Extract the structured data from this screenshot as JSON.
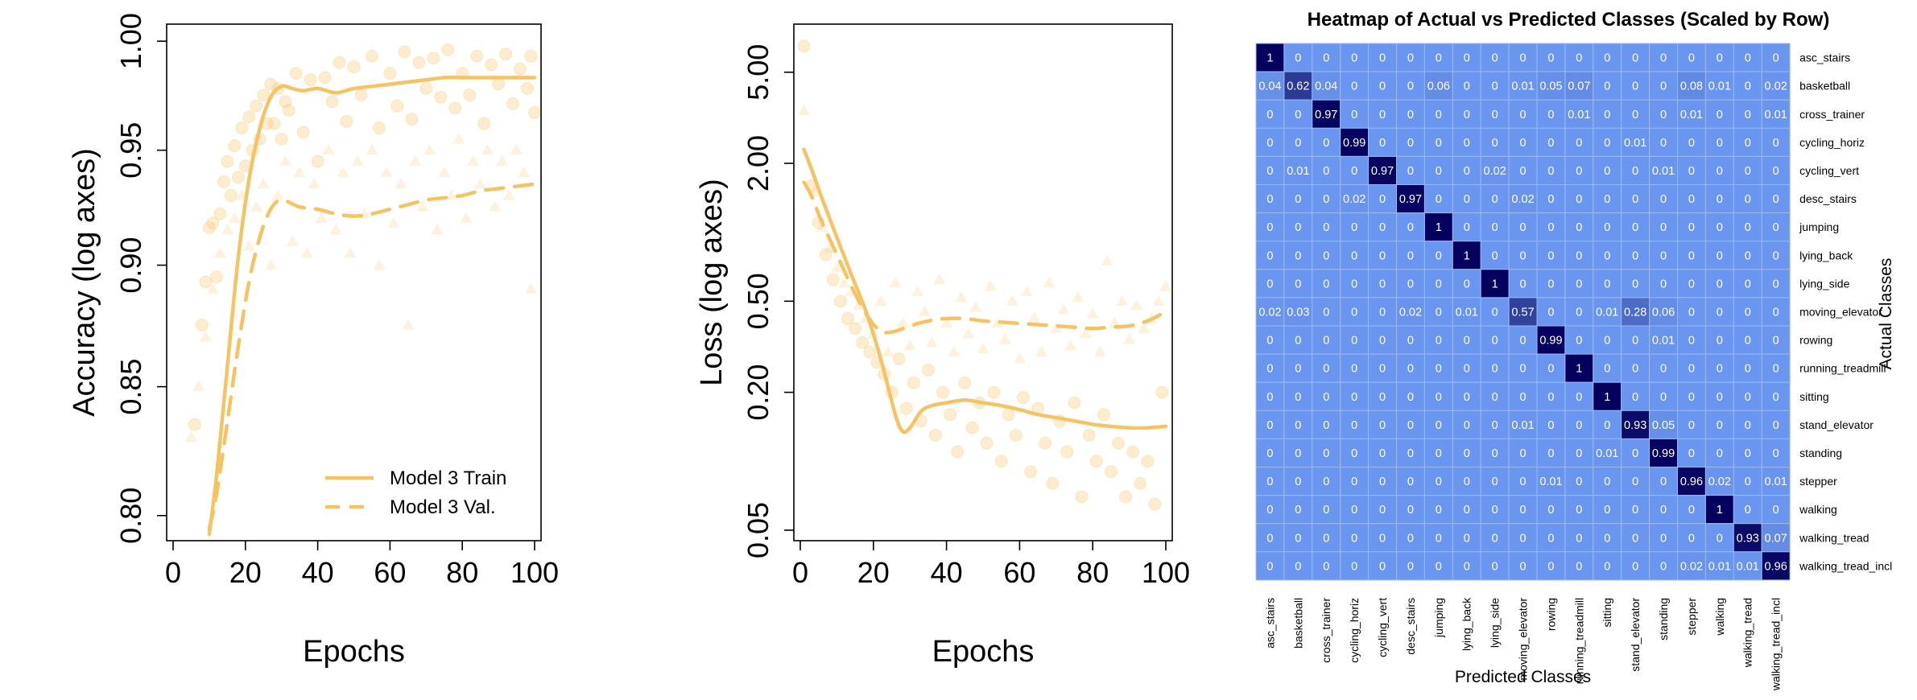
{
  "chart_data": [
    {
      "type": "scatter",
      "id": "accuracy",
      "xlabel": "Epochs",
      "ylabel": "Accuracy (log axes)",
      "xlim": [
        0,
        100
      ],
      "ylim": [
        0.793,
        1.005
      ],
      "y_log": true,
      "x_ticks": [
        0,
        20,
        40,
        60,
        80,
        100
      ],
      "x_tick_labels": [
        "0",
        "20",
        "40",
        "60",
        "80",
        "100"
      ],
      "y_ticks": [
        0.8,
        0.85,
        0.9,
        0.95,
        1.0
      ],
      "y_tick_labels": [
        "0.80",
        "0.85",
        "0.90",
        "0.95",
        "1.00"
      ],
      "color": "#f5c363",
      "legend": {
        "position": "bottom-right",
        "entries": [
          {
            "label": "Model 3 Train",
            "style": "solid"
          },
          {
            "label": "Model 3 Val.",
            "style": "dashed"
          }
        ]
      },
      "series": [
        {
          "name": "Model 3 Train",
          "kind": "smooth",
          "style": "solid",
          "x": [
            10,
            12,
            15,
            18,
            21,
            24,
            27,
            30,
            33,
            36,
            40,
            45,
            50,
            55,
            60,
            65,
            70,
            75,
            80,
            85,
            90,
            95,
            100
          ],
          "y": [
            0.793,
            0.815,
            0.858,
            0.903,
            0.937,
            0.96,
            0.974,
            0.979,
            0.978,
            0.977,
            0.978,
            0.976,
            0.978,
            0.979,
            0.98,
            0.981,
            0.982,
            0.983,
            0.983,
            0.983,
            0.983,
            0.983,
            0.983
          ]
        },
        {
          "name": "Model 3 Val.",
          "kind": "smooth",
          "style": "dashed",
          "x": [
            10,
            12,
            15,
            18,
            21,
            24,
            27,
            30,
            35,
            40,
            45,
            50,
            55,
            60,
            65,
            70,
            75,
            80,
            85,
            90,
            95,
            100
          ],
          "y": [
            0.795,
            0.808,
            0.836,
            0.866,
            0.893,
            0.912,
            0.924,
            0.928,
            0.925,
            0.924,
            0.922,
            0.921,
            0.922,
            0.924,
            0.926,
            0.928,
            0.929,
            0.93,
            0.932,
            0.933,
            0.934,
            0.935
          ]
        },
        {
          "name": "Model 3 Train (epochs)",
          "kind": "points",
          "marker": "circle",
          "x": [
            6,
            8,
            9,
            10,
            11,
            12,
            13,
            14,
            15,
            16,
            17,
            18,
            19,
            20,
            21,
            22,
            23,
            24,
            25,
            26,
            27,
            28,
            29,
            30,
            31,
            32,
            34,
            36,
            38,
            40,
            42,
            44,
            46,
            48,
            50,
            52,
            55,
            57,
            60,
            62,
            64,
            66,
            68,
            70,
            72,
            74,
            76,
            78,
            80,
            82,
            84,
            86,
            88,
            90,
            92,
            94,
            96,
            98,
            99,
            100
          ],
          "y": [
            0.835,
            0.875,
            0.893,
            0.916,
            0.918,
            0.895,
            0.922,
            0.936,
            0.945,
            0.93,
            0.952,
            0.938,
            0.96,
            0.943,
            0.965,
            0.95,
            0.97,
            0.955,
            0.975,
            0.962,
            0.98,
            0.962,
            0.978,
            0.955,
            0.972,
            0.968,
            0.985,
            0.958,
            0.982,
            0.945,
            0.983,
            0.972,
            0.99,
            0.963,
            0.988,
            0.975,
            0.993,
            0.96,
            0.985,
            0.97,
            0.995,
            0.964,
            0.99,
            0.978,
            0.992,
            0.974,
            0.996,
            0.969,
            0.985,
            0.975,
            0.993,
            0.962,
            0.989,
            0.98,
            0.994,
            0.971,
            0.987,
            0.978,
            0.993,
            0.967
          ]
        },
        {
          "name": "Model 3 Val. (epochs)",
          "kind": "points",
          "marker": "triangle",
          "x": [
            5,
            7,
            9,
            11,
            13,
            15,
            17,
            19,
            21,
            23,
            25,
            27,
            29,
            31,
            33,
            35,
            37,
            39,
            41,
            43,
            45,
            47,
            49,
            51,
            53,
            55,
            57,
            59,
            61,
            63,
            65,
            67,
            69,
            71,
            73,
            75,
            77,
            79,
            81,
            83,
            85,
            87,
            89,
            91,
            93,
            95,
            97,
            99
          ],
          "y": [
            0.83,
            0.85,
            0.87,
            0.89,
            0.905,
            0.915,
            0.92,
            0.93,
            0.908,
            0.925,
            0.935,
            0.9,
            0.93,
            0.945,
            0.91,
            0.94,
            0.905,
            0.935,
            0.92,
            0.95,
            0.915,
            0.94,
            0.905,
            0.945,
            0.922,
            0.95,
            0.9,
            0.94,
            0.918,
            0.935,
            0.875,
            0.945,
            0.925,
            0.95,
            0.915,
            0.94,
            0.93,
            0.955,
            0.92,
            0.945,
            0.935,
            0.95,
            0.925,
            0.945,
            0.93,
            0.95,
            0.94,
            0.89
          ]
        }
      ]
    },
    {
      "type": "scatter",
      "id": "loss",
      "xlabel": "Epochs",
      "ylabel": "Loss (log axes)",
      "xlim": [
        0,
        100
      ],
      "ylim": [
        0.048,
        7.6
      ],
      "y_log": true,
      "x_ticks": [
        0,
        20,
        40,
        60,
        80,
        100
      ],
      "x_tick_labels": [
        "0",
        "20",
        "40",
        "60",
        "80",
        "100"
      ],
      "y_ticks": [
        0.05,
        0.2,
        0.5,
        2.0,
        5.0
      ],
      "y_tick_labels": [
        "0.05",
        "0.20",
        "0.50",
        "2.00",
        "5.00"
      ],
      "color": "#f5c363",
      "series": [
        {
          "name": "Model 3 Train",
          "kind": "smooth",
          "style": "solid",
          "x": [
            1,
            3,
            6,
            10,
            14,
            18,
            22,
            26,
            28,
            30,
            33,
            36,
            40,
            45,
            50,
            55,
            60,
            65,
            70,
            75,
            80,
            85,
            90,
            95,
            100
          ],
          "y": [
            2.3,
            1.9,
            1.4,
            0.95,
            0.65,
            0.45,
            0.28,
            0.16,
            0.135,
            0.14,
            0.165,
            0.175,
            0.18,
            0.185,
            0.18,
            0.175,
            0.168,
            0.16,
            0.155,
            0.15,
            0.145,
            0.142,
            0.14,
            0.14,
            0.142
          ]
        },
        {
          "name": "Model 3 Val.",
          "kind": "smooth",
          "style": "dashed",
          "x": [
            1,
            3,
            6,
            10,
            14,
            18,
            22,
            26,
            30,
            35,
            40,
            45,
            50,
            55,
            60,
            65,
            70,
            75,
            80,
            85,
            90,
            95,
            100
          ],
          "y": [
            1.65,
            1.45,
            1.1,
            0.8,
            0.58,
            0.44,
            0.37,
            0.37,
            0.39,
            0.41,
            0.42,
            0.42,
            0.41,
            0.405,
            0.4,
            0.395,
            0.39,
            0.385,
            0.38,
            0.385,
            0.39,
            0.41,
            0.45
          ]
        },
        {
          "name": "Model 3 Train (epochs)",
          "kind": "points",
          "marker": "circle",
          "x": [
            1,
            3,
            5,
            7,
            9,
            11,
            13,
            15,
            17,
            19,
            21,
            23,
            25,
            27,
            29,
            31,
            33,
            35,
            37,
            39,
            41,
            43,
            45,
            47,
            49,
            51,
            53,
            55,
            57,
            59,
            61,
            63,
            65,
            67,
            69,
            71,
            73,
            75,
            77,
            79,
            81,
            83,
            85,
            87,
            89,
            91,
            93,
            95,
            97,
            99
          ],
          "y": [
            6.5,
            1.6,
            1.1,
            0.8,
            0.62,
            0.5,
            0.42,
            0.38,
            0.33,
            0.3,
            0.27,
            0.24,
            0.2,
            0.28,
            0.17,
            0.22,
            0.15,
            0.25,
            0.13,
            0.2,
            0.16,
            0.11,
            0.22,
            0.14,
            0.18,
            0.12,
            0.2,
            0.1,
            0.16,
            0.13,
            0.19,
            0.09,
            0.17,
            0.12,
            0.08,
            0.15,
            0.11,
            0.18,
            0.07,
            0.13,
            0.1,
            0.16,
            0.09,
            0.12,
            0.07,
            0.11,
            0.08,
            0.1,
            0.065,
            0.2
          ]
        },
        {
          "name": "Model 3 Val. (epochs)",
          "kind": "points",
          "marker": "triangle",
          "x": [
            1,
            4,
            6,
            8,
            10,
            12,
            14,
            16,
            18,
            20,
            22,
            24,
            26,
            28,
            30,
            32,
            34,
            36,
            38,
            40,
            42,
            44,
            46,
            48,
            50,
            52,
            54,
            56,
            58,
            60,
            62,
            64,
            66,
            68,
            70,
            72,
            74,
            76,
            78,
            80,
            82,
            84,
            86,
            88,
            90,
            92,
            94,
            96,
            98,
            100
          ],
          "y": [
            3.4,
            1.5,
            1.05,
            0.85,
            0.7,
            0.6,
            0.55,
            0.48,
            0.42,
            0.36,
            0.5,
            0.3,
            0.6,
            0.4,
            0.32,
            0.55,
            0.45,
            0.33,
            0.62,
            0.4,
            0.3,
            0.52,
            0.36,
            0.47,
            0.31,
            0.58,
            0.4,
            0.34,
            0.5,
            0.28,
            0.55,
            0.42,
            0.3,
            0.6,
            0.38,
            0.46,
            0.32,
            0.52,
            0.36,
            0.44,
            0.3,
            0.75,
            0.4,
            0.5,
            0.34,
            0.48,
            0.38,
            0.42,
            0.5,
            0.58
          ]
        }
      ]
    },
    {
      "type": "heatmap",
      "id": "confusion",
      "title": "Heatmap of Actual vs Predicted Classes (Scaled by Row)",
      "xlabel": "Predicted Classes",
      "ylabel": "Actual Classes",
      "colors": {
        "low": "#6b96ef",
        "high": "#05005e",
        "grid": "#9bb8f3"
      },
      "rows": [
        "asc_stairs",
        "basketball",
        "cross_trainer",
        "cycling_horiz",
        "cycling_vert",
        "desc_stairs",
        "jumping",
        "lying_back",
        "lying_side",
        "moving_elevator",
        "rowing",
        "running_treadmill",
        "sitting",
        "stand_elevator",
        "standing",
        "stepper",
        "walking",
        "walking_tread",
        "walking_tread_incl"
      ],
      "columns": [
        "asc_stairs",
        "basketball",
        "cross_trainer",
        "cycling_horiz",
        "cycling_vert",
        "desc_stairs",
        "jumping",
        "lying_back",
        "lying_side",
        "moving_elevator",
        "rowing",
        "running_treadmill",
        "sitting",
        "stand_elevator",
        "standing",
        "stepper",
        "walking",
        "walking_tread",
        "walking_tread_incl"
      ],
      "values": [
        [
          1,
          0,
          0,
          0,
          0,
          0,
          0,
          0,
          0,
          0,
          0,
          0,
          0,
          0,
          0,
          0,
          0,
          0,
          0
        ],
        [
          0.04,
          0.62,
          0.04,
          0,
          0,
          0,
          0.06,
          0,
          0,
          0.01,
          0.05,
          0.07,
          0,
          0,
          0,
          0.08,
          0.01,
          0,
          0.02
        ],
        [
          0,
          0,
          0.97,
          0,
          0,
          0,
          0,
          0,
          0,
          0,
          0,
          0.01,
          0,
          0,
          0,
          0.01,
          0,
          0,
          0.01
        ],
        [
          0,
          0,
          0,
          0.99,
          0,
          0,
          0,
          0,
          0,
          0,
          0,
          0,
          0,
          0.01,
          0,
          0,
          0,
          0,
          0
        ],
        [
          0,
          0.01,
          0,
          0,
          0.97,
          0,
          0,
          0,
          0.02,
          0,
          0,
          0,
          0,
          0,
          0.01,
          0,
          0,
          0,
          0
        ],
        [
          0,
          0,
          0,
          0.02,
          0,
          0.97,
          0,
          0,
          0,
          0.02,
          0,
          0,
          0,
          0,
          0,
          0,
          0,
          0,
          0
        ],
        [
          0,
          0,
          0,
          0,
          0,
          0,
          1,
          0,
          0,
          0,
          0,
          0,
          0,
          0,
          0,
          0,
          0,
          0,
          0
        ],
        [
          0,
          0,
          0,
          0,
          0,
          0,
          0,
          1,
          0,
          0,
          0,
          0,
          0,
          0,
          0,
          0,
          0,
          0,
          0
        ],
        [
          0,
          0,
          0,
          0,
          0,
          0,
          0,
          0,
          1,
          0,
          0,
          0,
          0,
          0,
          0,
          0,
          0,
          0,
          0
        ],
        [
          0.02,
          0.03,
          0,
          0,
          0,
          0.02,
          0,
          0.01,
          0,
          0.57,
          0,
          0,
          0.01,
          0.28,
          0.06,
          0,
          0,
          0,
          0
        ],
        [
          0,
          0,
          0,
          0,
          0,
          0,
          0,
          0,
          0,
          0,
          0.99,
          0,
          0,
          0,
          0.01,
          0,
          0,
          0,
          0
        ],
        [
          0,
          0,
          0,
          0,
          0,
          0,
          0,
          0,
          0,
          0,
          0,
          1,
          0,
          0,
          0,
          0,
          0,
          0,
          0
        ],
        [
          0,
          0,
          0,
          0,
          0,
          0,
          0,
          0,
          0,
          0,
          0,
          0,
          1,
          0,
          0,
          0,
          0,
          0,
          0
        ],
        [
          0,
          0,
          0,
          0,
          0,
          0,
          0,
          0,
          0,
          0.01,
          0,
          0,
          0,
          0.93,
          0.05,
          0,
          0,
          0,
          0
        ],
        [
          0,
          0,
          0,
          0,
          0,
          0,
          0,
          0,
          0,
          0,
          0,
          0,
          0.01,
          0,
          0.99,
          0,
          0,
          0,
          0
        ],
        [
          0,
          0,
          0,
          0,
          0,
          0,
          0,
          0,
          0,
          0,
          0.01,
          0,
          0,
          0,
          0,
          0.96,
          0.02,
          0,
          0.01
        ],
        [
          0,
          0,
          0,
          0,
          0,
          0,
          0,
          0,
          0,
          0,
          0,
          0,
          0,
          0,
          0,
          0,
          1,
          0,
          0
        ],
        [
          0,
          0,
          0,
          0,
          0,
          0,
          0,
          0,
          0,
          0,
          0,
          0,
          0,
          0,
          0,
          0,
          0,
          0.93,
          0.07
        ],
        [
          0,
          0,
          0,
          0,
          0,
          0,
          0,
          0,
          0,
          0,
          0,
          0,
          0,
          0,
          0,
          0.02,
          0.01,
          0.01,
          0.96
        ]
      ]
    }
  ]
}
